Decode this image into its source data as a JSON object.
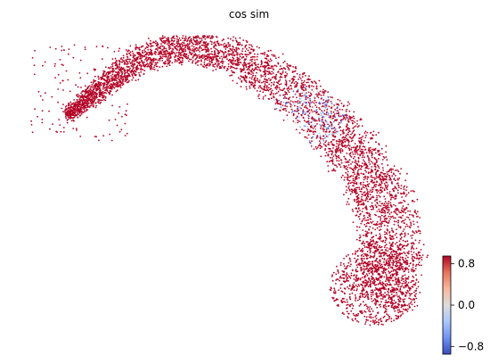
{
  "chart_data": {
    "type": "scatter",
    "title": "cos sim",
    "xlabel": "",
    "ylabel": "",
    "axes_visible": false,
    "grid": false,
    "legend": "none",
    "point_color_default": "#b40426",
    "colorbar": {
      "label": "",
      "colormap": "coolwarm",
      "range": [
        -0.95,
        0.95
      ],
      "ticks": [
        0.8,
        0.0,
        -0.8
      ],
      "tick_labels": [
        "0.8",
        "0.0",
        "−0.8"
      ],
      "placement": "right"
    },
    "color_stops": [
      "#3b4cc0",
      "#6f92f3",
      "#aac7fd",
      "#dddcdc",
      "#f7b89c",
      "#e7745b",
      "#b40426"
    ],
    "structure": {
      "description_points": "single dense arc of cells; nearly all cells at value ~1 (dark red); a patch of low/negative values (blue, grey) on the upper-right part of the arc",
      "n_points_approx": 6000
    }
  }
}
